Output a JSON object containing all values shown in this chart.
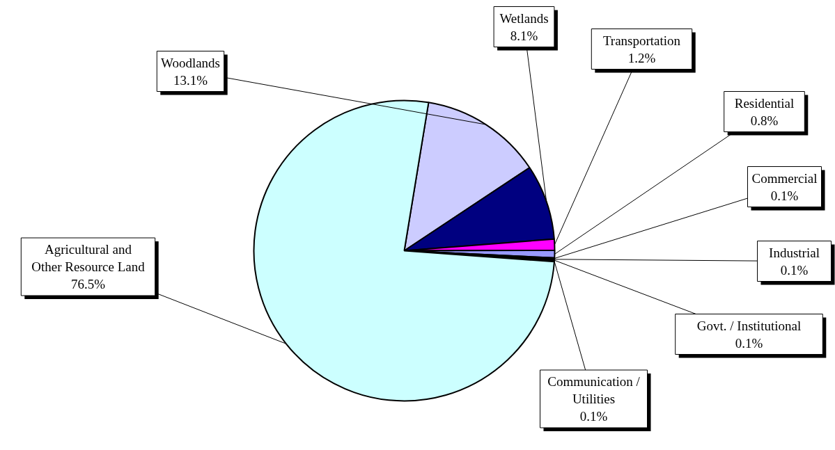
{
  "chart_data": {
    "type": "pie",
    "categories": [
      "Woodlands",
      "Wetlands",
      "Transportation",
      "Residential",
      "Commercial",
      "Industrial",
      "Govt. / Institutional",
      "Communication / Utilities",
      "Agricultural and Other Resource Land"
    ],
    "values": [
      13.1,
      8.1,
      1.2,
      0.8,
      0.1,
      0.1,
      0.1,
      0.1,
      76.5
    ],
    "colors": [
      "#ccccff",
      "#000080",
      "#ff00ff",
      "#9999ff",
      "#993366",
      "#ffffcc",
      "#660066",
      "#ff8080",
      "#ccffff"
    ],
    "value_labels": [
      "13.1%",
      "8.1%",
      "1.2%",
      "0.8%",
      "0.1%",
      "0.1%",
      "0.1%",
      "0.1%",
      "76.5%"
    ]
  }
}
